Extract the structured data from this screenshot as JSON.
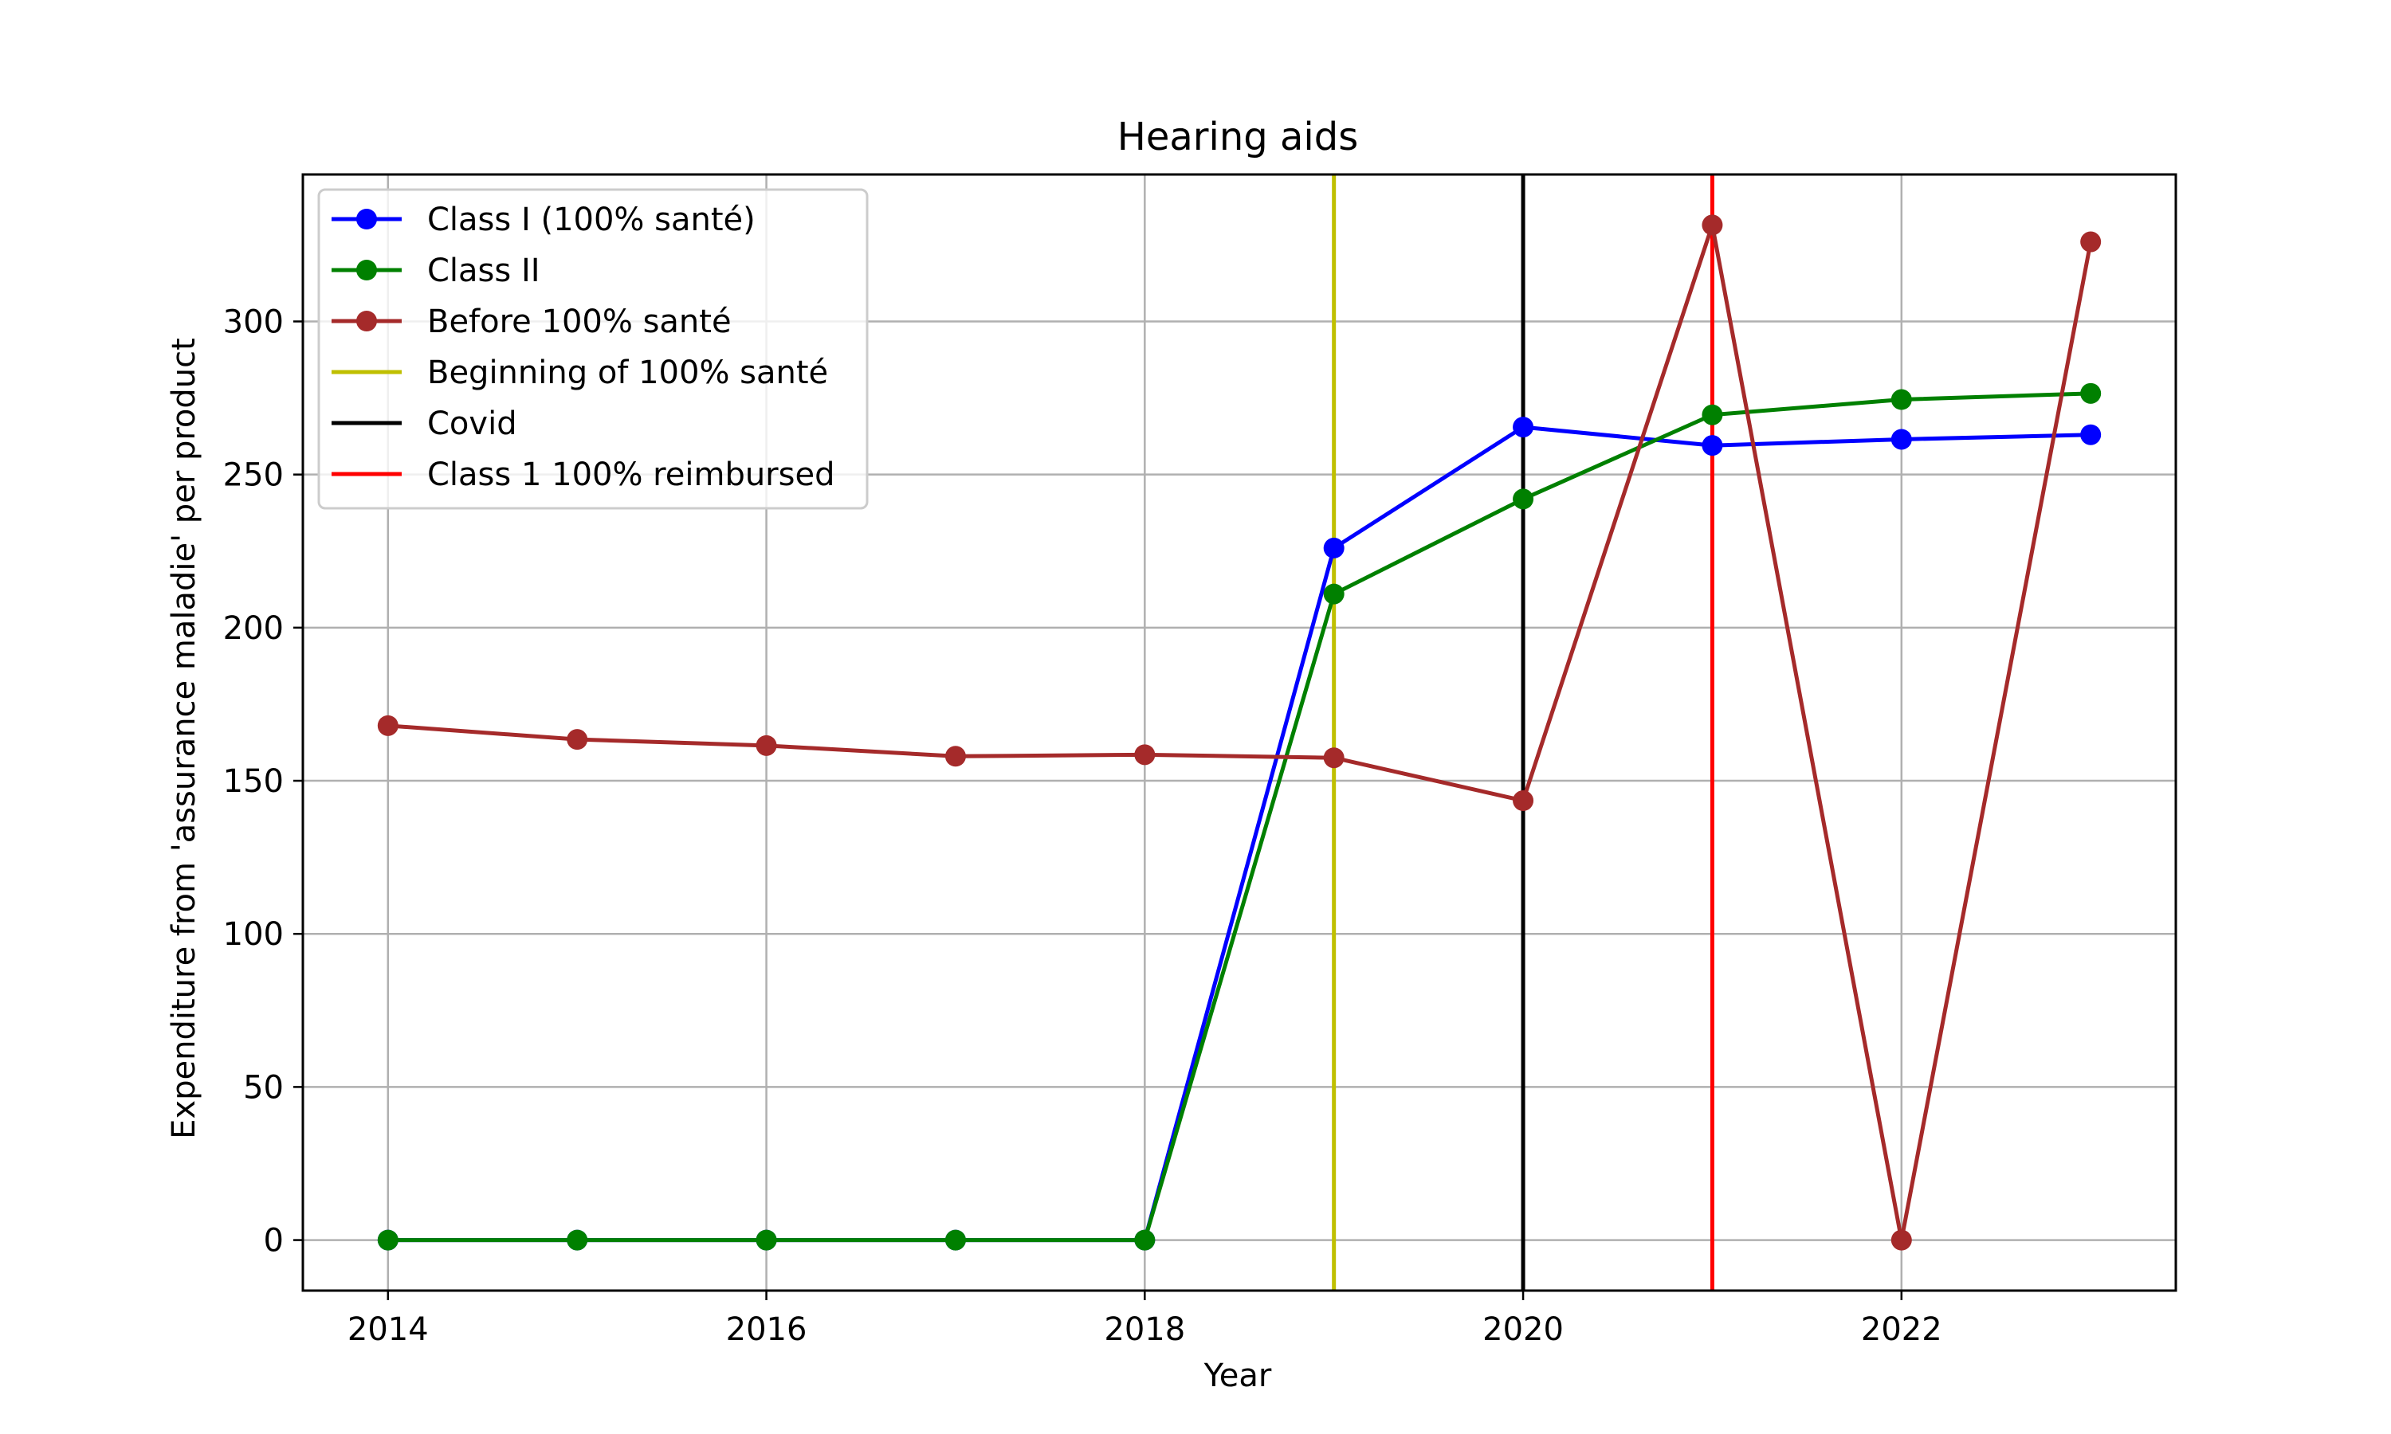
{
  "chart_data": {
    "type": "line",
    "title": "Hearing aids",
    "xlabel": "Year",
    "ylabel": "Expenditure from 'assurance maladie' per product",
    "xlim": [
      2013.55,
      2023.45
    ],
    "ylim": [
      -16.5,
      348
    ],
    "xticks": [
      2014,
      2016,
      2018,
      2020,
      2022
    ],
    "yticks": [
      0,
      50,
      100,
      150,
      200,
      250,
      300
    ],
    "grid": true,
    "legend_position": "top-left",
    "x": [
      2014,
      2015,
      2016,
      2017,
      2018,
      2019,
      2020,
      2021,
      2022,
      2023
    ],
    "series": [
      {
        "name": "Class I (100% santé)",
        "color": "#0000ff",
        "marker": "circle",
        "values": [
          0,
          0,
          0,
          0,
          0,
          226,
          265.5,
          259.5,
          261.5,
          263
        ]
      },
      {
        "name": "Class II",
        "color": "#008000",
        "marker": "circle",
        "values": [
          0,
          0,
          0,
          0,
          0,
          211,
          242,
          269.5,
          274.5,
          276.5
        ]
      },
      {
        "name": "Before 100% santé",
        "color": "#a52a2a",
        "marker": "circle",
        "values": [
          168,
          163.5,
          161.5,
          158,
          158.5,
          157.5,
          143.5,
          331.5,
          0,
          326
        ]
      }
    ],
    "vlines": [
      {
        "name": "Beginning of 100% santé",
        "x": 2019,
        "color": "#bfbf00"
      },
      {
        "name": "Covid",
        "x": 2020,
        "color": "#000000"
      },
      {
        "name": "Class 1 100% reimbursed",
        "x": 2021,
        "color": "#ff0000"
      }
    ]
  }
}
